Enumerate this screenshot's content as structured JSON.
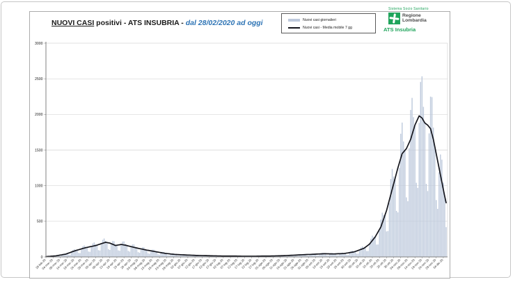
{
  "header": {
    "title_main": "NUOVI CASI",
    "title_rest": " positivi - ATS INSUBRIA - ",
    "title_date": "dal 28/02/2020 ad oggi"
  },
  "legend": {
    "items": [
      {
        "label": "Nuovi casi giornalieri",
        "swatch": "bar"
      },
      {
        "label": "Nuovi casi - Media mobile 7 gg",
        "swatch": "line"
      }
    ]
  },
  "branding": {
    "system": "Sistema Socio Sanitario",
    "region_line1": "Regione",
    "region_line2": "Lombardia",
    "agency": "ATS Insubria",
    "logo_icon": "rosa-camuna-icon"
  },
  "chart_data": {
    "type": "bar",
    "overlay": "line",
    "title": "NUOVI CASI positivi - ATS INSUBRIA - dal 28/02/2020 ad oggi",
    "xlabel": "",
    "ylabel": "",
    "ylim": [
      0,
      3000
    ],
    "yticks": [
      0,
      500,
      1000,
      1500,
      2000,
      2500,
      3000
    ],
    "ytick_labels": [
      "0",
      "500",
      "1000",
      "1500",
      "2000",
      "2500",
      "3000"
    ],
    "grid": "horizontal",
    "legend_position": "top-right",
    "tick_interval_days": 5,
    "x_tick_labels": [
      "28-feb-20",
      "04-mar-20",
      "09-mar-20",
      "14-mar-20",
      "19-mar-20",
      "24-mar-20",
      "29-mar-20",
      "03-apr-20",
      "08-apr-20",
      "13-apr-20",
      "18-apr-20",
      "23-apr-20",
      "28-apr-20",
      "03-mag-20",
      "08-mag-20",
      "13-mag-20",
      "18-mag-20",
      "23-mag-20",
      "28-mag-20",
      "02-giu-20",
      "07-giu-20",
      "12-giu-20",
      "17-giu-20",
      "22-giu-20",
      "27-giu-20",
      "02-lug-20",
      "07-lug-20",
      "12-lug-20",
      "17-lug-20",
      "22-lug-20",
      "27-lug-20",
      "01-ago-20",
      "06-ago-20",
      "11-ago-20",
      "16-ago-20",
      "21-ago-20",
      "26-ago-20",
      "31-ago-20",
      "05-set-20",
      "10-set-20",
      "15-set-20",
      "20-set-20",
      "25-set-20",
      "30-set-20",
      "05-ott-20",
      "10-ott-20",
      "15-ott-20",
      "20-ott-20",
      "25-ott-20",
      "30-ott-20",
      "04-nov-20",
      "09-nov-20",
      "14-nov-20",
      "19-nov-20",
      "24-nov-20",
      "29-nov-20",
      "04-dic-20"
    ],
    "series": [
      {
        "name": "Nuovi casi giornalieri",
        "type": "bar",
        "values": [
          6,
          6,
          4,
          5,
          10,
          15,
          18,
          17,
          19,
          12,
          13,
          28,
          41,
          47,
          44,
          47,
          30,
          31,
          66,
          95,
          108,
          99,
          96,
          56,
          54,
          107,
          149,
          161,
          143,
          134,
          76,
          72,
          140,
          189,
          203,
          176,
          166,
          95,
          90,
          177,
          240,
          259,
          226,
          202,
          109,
          98,
          177,
          223,
          220,
          176,
          164,
          92,
          86,
          166,
          215,
          218,
          182,
          160,
          85,
          75,
          138,
          175,
          176,
          143,
          126,
          67,
          59,
          107,
          136,
          135,
          110,
          96,
          51,
          45,
          82,
          103,
          103,
          83,
          71,
          37,
          32,
          58,
          71,
          70,
          55,
          48,
          25,
          22,
          39,
          49,
          48,
          39,
          34,
          18,
          16,
          29,
          38,
          38,
          31,
          27,
          14,
          13,
          24,
          30,
          30,
          24,
          21,
          12,
          10,
          19,
          24,
          25,
          20,
          18,
          9,
          9,
          15,
          20,
          20,
          17,
          15,
          8,
          7,
          13,
          16,
          17,
          14,
          13,
          7,
          7,
          11,
          15,
          16,
          13,
          12,
          6,
          6,
          10,
          13,
          13,
          11,
          10,
          6,
          5,
          10,
          13,
          13,
          11,
          10,
          6,
          6,
          10,
          15,
          16,
          13,
          12,
          7,
          7,
          12,
          18,
          18,
          15,
          15,
          8,
          8,
          15,
          21,
          22,
          20,
          19,
          11,
          11,
          21,
          29,
          31,
          28,
          26,
          15,
          14,
          28,
          38,
          40,
          35,
          33,
          19,
          18,
          33,
          45,
          48,
          42,
          39,
          22,
          21,
          40,
          54,
          57,
          50,
          45,
          24,
          22,
          41,
          54,
          55,
          46,
          43,
          24,
          23,
          43,
          58,
          61,
          53,
          51,
          30,
          29,
          58,
          80,
          87,
          77,
          77,
          46,
          46,
          94,
          133,
          147,
          132,
          135,
          83,
          83,
          171,
          256,
          299,
          281,
          280,
          173,
          175,
          366,
          525,
          621,
          589,
          593,
          358,
          363,
          760,
          1094,
          1235,
          1128,
          1100,
          646,
          625,
          1251,
          1729,
          1885,
          1620,
          1497,
          836,
          782,
          1527,
          2063,
          2232,
          1961,
          1850,
          1041,
          969,
          1881,
          2456,
          2535,
          2107,
          1880,
          1026,
          925,
          1734,
          2250,
          2243,
          1815,
          1550,
          798,
          675,
          1188,
          1438,
          1365,
          1045,
          850,
          418
        ]
      },
      {
        "name": "Nuovi casi - Media mobile 7 gg",
        "type": "line",
        "values": [
          5,
          6,
          8,
          9,
          11,
          12,
          14,
          15,
          19,
          22,
          26,
          29,
          33,
          36,
          40,
          47,
          54,
          61,
          69,
          76,
          83,
          90,
          96,
          101,
          107,
          113,
          119,
          124,
          130,
          134,
          139,
          143,
          147,
          151,
          156,
          160,
          166,
          173,
          179,
          186,
          192,
          199,
          205,
          202,
          198,
          195,
          186,
          178,
          169,
          160,
          164,
          168,
          171,
          175,
          172,
          168,
          165,
          160,
          155,
          150,
          145,
          140,
          135,
          130,
          126,
          121,
          117,
          113,
          109,
          104,
          100,
          96,
          93,
          89,
          86,
          82,
          79,
          75,
          71,
          68,
          64,
          61,
          57,
          54,
          50,
          48,
          46,
          44,
          41,
          39,
          37,
          35,
          34,
          33,
          32,
          31,
          30,
          29,
          28,
          27,
          26,
          26,
          25,
          24,
          23,
          22,
          21,
          21,
          20,
          20,
          19,
          19,
          18,
          18,
          17,
          17,
          16,
          16,
          15,
          15,
          15,
          14,
          14,
          14,
          13,
          13,
          13,
          13,
          13,
          13,
          12,
          12,
          12,
          12,
          12,
          11,
          11,
          11,
          10,
          10,
          10,
          10,
          10,
          10,
          10,
          10,
          10,
          10,
          10,
          11,
          11,
          11,
          12,
          12,
          12,
          12,
          13,
          13,
          13,
          14,
          14,
          14,
          15,
          15,
          16,
          16,
          17,
          17,
          18,
          19,
          20,
          21,
          22,
          23,
          24,
          25,
          26,
          27,
          28,
          29,
          30,
          31,
          32,
          33,
          34,
          35,
          35,
          36,
          37,
          38,
          39,
          40,
          41,
          42,
          43,
          44,
          45,
          45,
          44,
          44,
          43,
          43,
          42,
          42,
          43,
          44,
          45,
          45,
          46,
          47,
          48,
          51,
          54,
          57,
          61,
          64,
          67,
          70,
          77,
          84,
          91,
          99,
          106,
          113,
          120,
          135,
          150,
          165,
          180,
          205,
          230,
          255,
          280,
          315,
          350,
          385,
          420,
          478,
          535,
          593,
          650,
          725,
          800,
          875,
          950,
          1025,
          1100,
          1175,
          1250,
          1317,
          1383,
          1450,
          1473,
          1497,
          1520,
          1563,
          1607,
          1650,
          1717,
          1783,
          1850,
          1893,
          1937,
          1980,
          1965,
          1950,
          1915,
          1880,
          1865,
          1850,
          1825,
          1800,
          1725,
          1650,
          1550,
          1450,
          1350,
          1250,
          1150,
          1050,
          950,
          850,
          760
        ]
      }
    ],
    "colors": {
      "bar": "#bdc9dc",
      "line": "#14151c",
      "grid": "#d6d6d6",
      "axis": "#808080",
      "tick_text": "#333333",
      "accent_blue": "#2e74b5",
      "brand_green": "#1fa45b"
    }
  }
}
